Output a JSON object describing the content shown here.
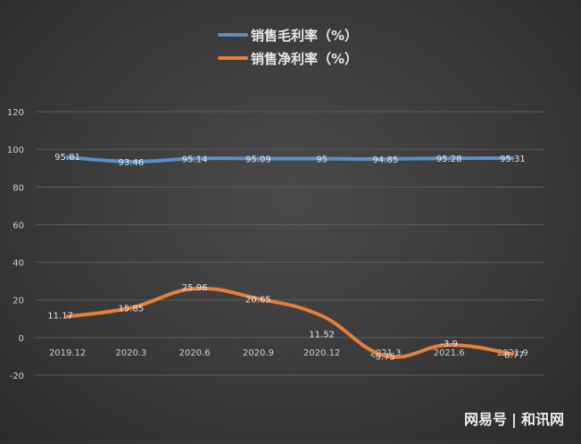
{
  "chart_data": {
    "type": "line",
    "categories": [
      "2019.12",
      "2020.3",
      "2020.6",
      "2020.9",
      "2020.12",
      "2021.3",
      "2021.6",
      "2021.9"
    ],
    "series": [
      {
        "name": "销售毛利率（%）",
        "color": "#5b8fc7",
        "values": [
          95.81,
          93.46,
          95.14,
          95.09,
          95,
          94.85,
          95.28,
          95.31
        ],
        "labels": [
          "95.81",
          "93.46",
          "95.14",
          "95.09",
          "95",
          "94.85",
          "95.28",
          "95.31"
        ]
      },
      {
        "name": "销售净利率（%）",
        "color": "#e5803a",
        "values": [
          11.17,
          15.85,
          25.96,
          20.65,
          11.52,
          -9.75,
          -3.9,
          -8.77
        ],
        "labels": [
          "11.17",
          "15.85",
          "25.96",
          "20.65",
          "11.52",
          "-9.75",
          "-3.9",
          "-8.77"
        ]
      }
    ],
    "yticks": [
      "120",
      "100",
      "80",
      "60",
      "40",
      "20",
      "0",
      "-20"
    ],
    "ylim": [
      -20,
      120
    ],
    "grid": true,
    "legend": "top-center"
  },
  "watermark": {
    "left": "网易号",
    "divider": "|",
    "right": "和讯网"
  }
}
